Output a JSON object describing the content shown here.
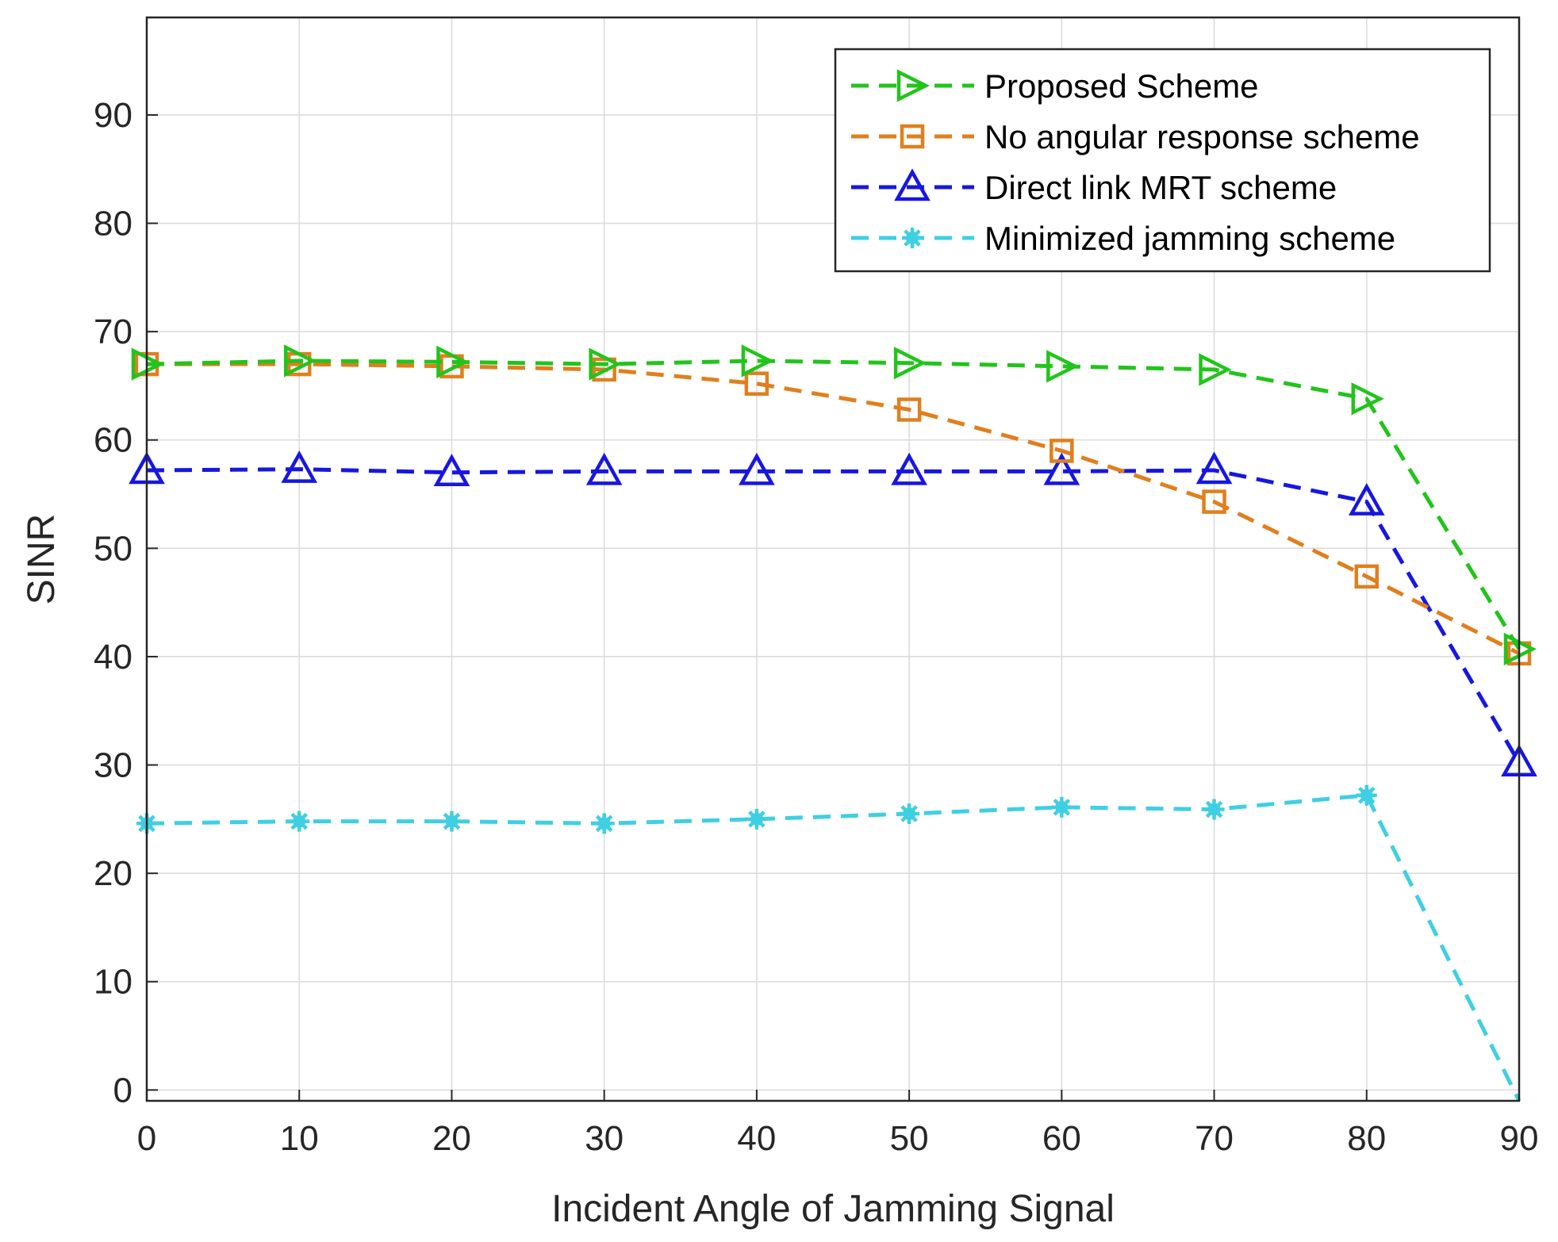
{
  "chart_data": {
    "type": "line",
    "title": "",
    "xlabel": "Incident Angle of Jamming Signal",
    "ylabel": "SINR",
    "xlim": [
      0,
      90
    ],
    "ylim": [
      -1,
      99
    ],
    "xticks": [
      "0",
      "10",
      "20",
      "30",
      "40",
      "50",
      "60",
      "70",
      "80",
      "90"
    ],
    "yticks": [
      "0",
      "10",
      "20",
      "30",
      "40",
      "50",
      "60",
      "70",
      "80",
      "90"
    ],
    "grid": true,
    "legend_position": "top-right",
    "x": [
      0,
      10,
      20,
      30,
      40,
      50,
      60,
      70,
      80,
      90
    ],
    "series": [
      {
        "name": "Proposed Scheme",
        "marker": "triangle-right",
        "color": "#22C41B",
        "values": [
          67.0,
          67.3,
          67.2,
          67.0,
          67.3,
          67.1,
          66.8,
          66.5,
          63.8,
          40.7
        ]
      },
      {
        "name": "No angular response scheme",
        "marker": "square",
        "color": "#E07F1E",
        "values": [
          67.0,
          67.0,
          66.8,
          66.5,
          65.2,
          62.8,
          59.0,
          54.3,
          47.4,
          40.3
        ]
      },
      {
        "name": "Direct link MRT scheme",
        "marker": "triangle-up",
        "color": "#1717E0",
        "values": [
          57.2,
          57.3,
          57.0,
          57.1,
          57.1,
          57.1,
          57.1,
          57.2,
          54.3,
          30.2
        ]
      },
      {
        "name": "Minimized jamming scheme",
        "marker": "asterisk",
        "color": "#3FCFE3",
        "values": [
          24.6,
          24.8,
          24.8,
          24.6,
          25.0,
          25.5,
          26.1,
          25.9,
          27.2,
          -1.0
        ]
      }
    ]
  }
}
